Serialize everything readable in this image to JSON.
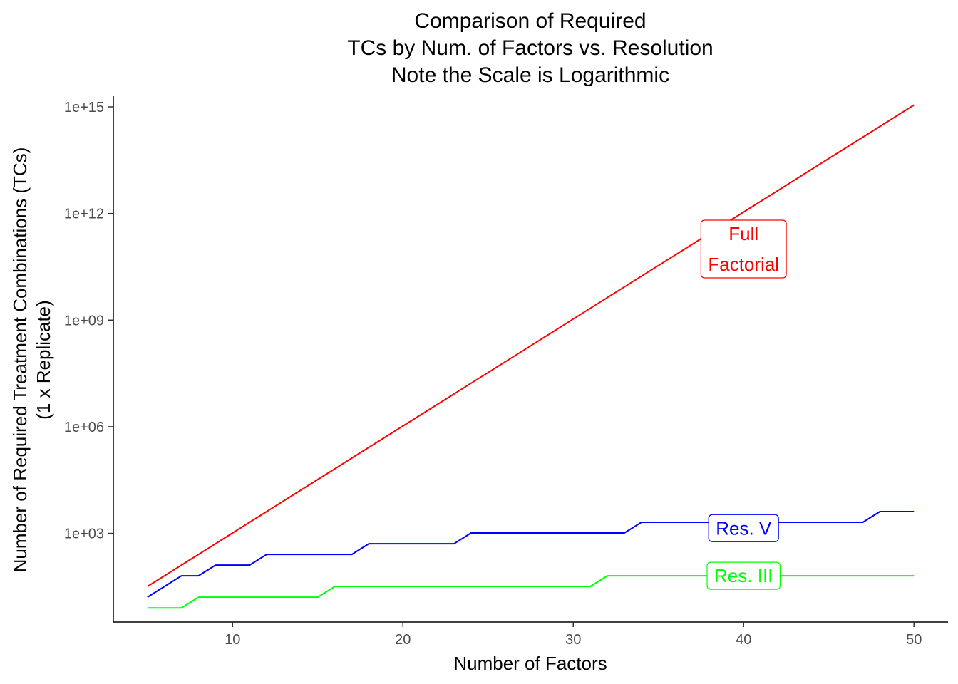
{
  "chart_data": {
    "type": "line",
    "title_lines": [
      "Comparison of Required",
      "TCs by Num. of Factors vs. Resolution",
      "Note the Scale is Logarithmic"
    ],
    "xlabel": "Number of Factors",
    "ylabel_lines": [
      "Number of Required Treatment Combinations (TCs)",
      "(1 x Replicate)"
    ],
    "x_ticks": [
      10,
      20,
      30,
      40,
      50
    ],
    "x_tick_labels": [
      "10",
      "20",
      "30",
      "40",
      "50"
    ],
    "y_scale": "log10",
    "y_ticks": [
      1000,
      1000000,
      1000000000,
      1000000000000,
      1000000000000000
    ],
    "y_tick_labels": [
      "1e+03",
      "1e+06",
      "1e+09",
      "1e+12",
      "1e+15"
    ],
    "xlim": [
      3,
      52
    ],
    "ylim": [
      3.2,
      2000000000000000.0
    ],
    "series": [
      {
        "name": "Full\nFactorial",
        "color": "#ff0000",
        "label_x": 40,
        "x": [
          5,
          6,
          7,
          8,
          9,
          10,
          11,
          12,
          13,
          14,
          15,
          16,
          17,
          18,
          19,
          20,
          21,
          22,
          23,
          24,
          25,
          26,
          27,
          28,
          29,
          30,
          31,
          32,
          33,
          34,
          35,
          36,
          37,
          38,
          39,
          40,
          41,
          42,
          43,
          44,
          45,
          46,
          47,
          48,
          49,
          50
        ],
        "y": [
          32,
          64,
          128,
          256,
          512,
          1024,
          2048,
          4096,
          8192,
          16384,
          32768,
          65536,
          131072,
          262144,
          524288,
          1048576,
          2097152,
          4194304,
          8388608,
          16777216,
          33554432,
          67108864,
          134217728,
          268435456,
          536870912,
          1073741824,
          2147483648,
          4294967296,
          8589934592,
          17179869184,
          34359738368,
          68719476736,
          137438953472,
          274877906944,
          549755813888,
          1099511627776,
          2199023255552,
          4398046511104,
          8796093022208,
          17592186044416,
          35184372088832,
          70368744177664,
          140737488355328,
          281474976710656,
          562949953421312,
          1125899906842624
        ]
      },
      {
        "name": "Res. V",
        "color": "#0000ff",
        "label_x": 40,
        "x": [
          5,
          6,
          7,
          8,
          9,
          10,
          11,
          12,
          13,
          14,
          15,
          16,
          17,
          18,
          19,
          20,
          21,
          22,
          23,
          24,
          25,
          26,
          27,
          28,
          29,
          30,
          31,
          32,
          33,
          34,
          35,
          36,
          37,
          38,
          39,
          40,
          41,
          42,
          43,
          44,
          45,
          46,
          47,
          48,
          49,
          50
        ],
        "y": [
          16,
          32,
          64,
          64,
          128,
          128,
          128,
          256,
          256,
          256,
          256,
          256,
          256,
          512,
          512,
          512,
          512,
          512,
          512,
          1024,
          1024,
          1024,
          1024,
          1024,
          1024,
          1024,
          1024,
          1024,
          1024,
          2048,
          2048,
          2048,
          2048,
          2048,
          2048,
          2048,
          2048,
          2048,
          2048,
          2048,
          2048,
          2048,
          2048,
          4096,
          4096,
          4096
        ]
      },
      {
        "name": "Res. III",
        "color": "#00ff00",
        "label_x": 40,
        "x": [
          5,
          6,
          7,
          8,
          9,
          10,
          11,
          12,
          13,
          14,
          15,
          16,
          17,
          18,
          19,
          20,
          21,
          22,
          23,
          24,
          25,
          26,
          27,
          28,
          29,
          30,
          31,
          32,
          33,
          34,
          35,
          36,
          37,
          38,
          39,
          40,
          41,
          42,
          43,
          44,
          45,
          46,
          47,
          48,
          49,
          50
        ],
        "y": [
          8,
          8,
          8,
          16,
          16,
          16,
          16,
          16,
          16,
          16,
          16,
          32,
          32,
          32,
          32,
          32,
          32,
          32,
          32,
          32,
          32,
          32,
          32,
          32,
          32,
          32,
          32,
          64,
          64,
          64,
          64,
          64,
          64,
          64,
          64,
          64,
          64,
          64,
          64,
          64,
          64,
          64,
          64,
          64,
          64,
          64
        ]
      }
    ],
    "label_y": [
      100000000000,
      1400,
      64
    ],
    "grid": false,
    "legend": "none"
  }
}
